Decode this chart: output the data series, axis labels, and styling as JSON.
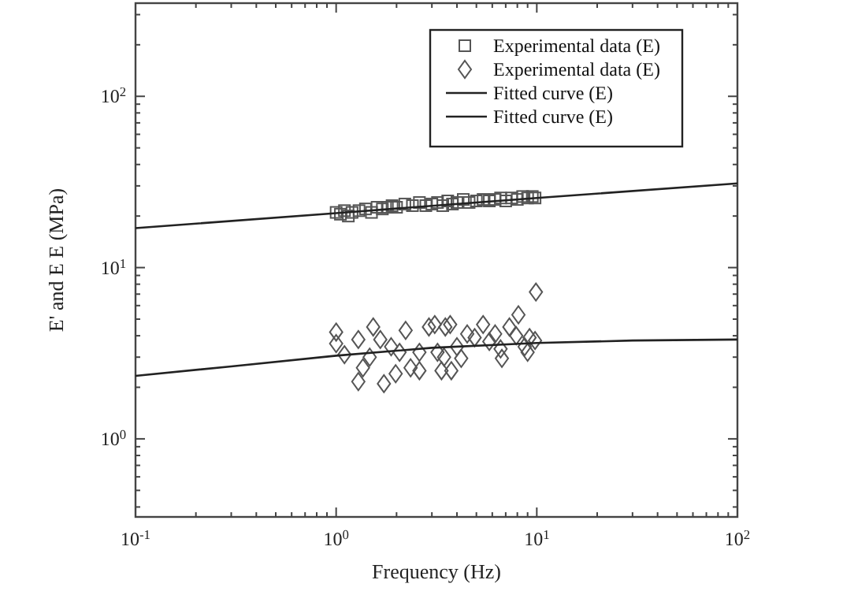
{
  "chart_data": {
    "type": "scatter",
    "xlabel": "Frequency (Hz)",
    "ylabel": "E' and E E (MPa)",
    "log": "xy",
    "legend": "top right",
    "grid": false,
    "xlim": [
      0.1,
      100
    ],
    "ylim": [
      0.35,
      350
    ],
    "xticks": [
      {
        "value": 0.1,
        "label": "10$^{-1}$"
      },
      {
        "value": 0.2,
        "label": null
      },
      {
        "value": 0.3,
        "label": null
      },
      {
        "value": 0.4,
        "label": null
      },
      {
        "value": 0.5,
        "label": null
      },
      {
        "value": 0.6,
        "label": null
      },
      {
        "value": 0.7,
        "label": null
      },
      {
        "value": 0.8,
        "label": null
      },
      {
        "value": 0.9,
        "label": null
      },
      {
        "value": 1,
        "label": "10$^{0}$"
      },
      {
        "value": 2,
        "label": null
      },
      {
        "value": 3,
        "label": null
      },
      {
        "value": 4,
        "label": null
      },
      {
        "value": 5,
        "label": null
      },
      {
        "value": 6,
        "label": null
      },
      {
        "value": 7,
        "label": null
      },
      {
        "value": 8,
        "label": null
      },
      {
        "value": 9,
        "label": null
      },
      {
        "value": 10,
        "label": "10$^{1}$"
      },
      {
        "value": 20,
        "label": null
      },
      {
        "value": 30,
        "label": null
      },
      {
        "value": 40,
        "label": null
      },
      {
        "value": 50,
        "label": null
      },
      {
        "value": 60,
        "label": null
      },
      {
        "value": 70,
        "label": null
      },
      {
        "value": 80,
        "label": null
      },
      {
        "value": 90,
        "label": null
      },
      {
        "value": 100,
        "label": "10$^{2}$"
      }
    ],
    "yticks": [
      {
        "value": 0.4,
        "label": null
      },
      {
        "value": 0.5,
        "label": null
      },
      {
        "value": 0.6,
        "label": null
      },
      {
        "value": 0.7,
        "label": null
      },
      {
        "value": 0.8,
        "label": null
      },
      {
        "value": 0.9,
        "label": null
      },
      {
        "value": 1,
        "label": "10$^{0}$"
      },
      {
        "value": 2,
        "label": null
      },
      {
        "value": 3,
        "label": null
      },
      {
        "value": 4,
        "label": null
      },
      {
        "value": 5,
        "label": null
      },
      {
        "value": 6,
        "label": null
      },
      {
        "value": 7,
        "label": null
      },
      {
        "value": 8,
        "label": null
      },
      {
        "value": 9,
        "label": null
      },
      {
        "value": 10,
        "label": "10$^{1}$"
      },
      {
        "value": 20,
        "label": null
      },
      {
        "value": 30,
        "label": null
      },
      {
        "value": 40,
        "label": null
      },
      {
        "value": 50,
        "label": null
      },
      {
        "value": 60,
        "label": null
      },
      {
        "value": 70,
        "label": null
      },
      {
        "value": 80,
        "label": null
      },
      {
        "value": 90,
        "label": null
      },
      {
        "value": 100,
        "label": "10$^{2}$"
      },
      {
        "value": 200,
        "label": null
      },
      {
        "value": 300,
        "label": null
      }
    ],
    "series": [
      {
        "name": "Experimental data (E)",
        "color": "#555555",
        "marker": "square",
        "x": [
          1.0,
          1.05,
          1.1,
          1.15,
          1.2,
          1.3,
          1.4,
          1.5,
          1.6,
          1.7,
          1.8,
          1.9,
          2.0,
          2.2,
          2.4,
          2.6,
          2.8,
          3.0,
          3.2,
          3.4,
          3.6,
          3.8,
          4.0,
          4.3,
          4.6,
          5.0,
          5.4,
          5.8,
          6.2,
          6.6,
          7.0,
          7.5,
          8.0,
          8.5,
          9.0,
          9.5,
          9.8
        ],
        "values": [
          21,
          20.5,
          21.5,
          20,
          21,
          21.5,
          22,
          21,
          22.5,
          22,
          22.5,
          23,
          22.5,
          23.5,
          23,
          24,
          23,
          23.5,
          24,
          23,
          24.5,
          23.5,
          24,
          25,
          24,
          24.5,
          25,
          24.5,
          25,
          25.5,
          24.5,
          25.5,
          25,
          26,
          25.5,
          26,
          25.5
        ]
      },
      {
        "name": "Experimental data (E)",
        "color": "#555555",
        "marker": "diamond",
        "x": [
          1.0,
          1.0,
          1.1,
          1.29,
          1.36,
          1.29,
          1.53,
          1.73,
          1.98,
          2.22,
          2.07,
          2.35,
          2.6,
          2.9,
          3.1,
          3.35,
          3.5,
          3.7,
          3.75,
          4.0,
          4.5,
          4.2,
          5.4,
          5.8,
          6.2,
          6.7,
          7.3,
          8.1,
          8.7,
          9.2,
          9.9,
          9.8,
          1.88,
          2.6,
          1.66,
          1.47,
          3.2,
          3.45,
          4.9,
          6.6,
          7.9,
          9.0
        ],
        "values": [
          4.2,
          3.6,
          3.1,
          2.16,
          2.6,
          3.8,
          4.5,
          2.1,
          2.4,
          4.3,
          3.2,
          2.6,
          2.5,
          4.5,
          4.65,
          2.5,
          4.5,
          4.65,
          2.5,
          3.45,
          4.1,
          2.95,
          4.65,
          3.7,
          4.1,
          2.95,
          4.5,
          5.3,
          3.45,
          3.9,
          7.2,
          3.75,
          3.45,
          3.2,
          3.8,
          3.0,
          3.2,
          3.0,
          3.9,
          3.35,
          4.0,
          3.2
        ]
      },
      {
        "name": "Fitted curve (E)",
        "type": "line",
        "color": "#222222",
        "marker": "none",
        "x": [
          0.1,
          1,
          10,
          100
        ],
        "values": [
          17,
          20.8,
          25.5,
          31
        ]
      },
      {
        "name": "Fitted curve (E)",
        "type": "line",
        "color": "#222222",
        "marker": "none",
        "x": [
          0.1,
          0.3,
          1,
          3,
          10,
          30,
          100
        ],
        "values": [
          2.33,
          2.65,
          3.06,
          3.4,
          3.63,
          3.75,
          3.8
        ]
      }
    ]
  }
}
